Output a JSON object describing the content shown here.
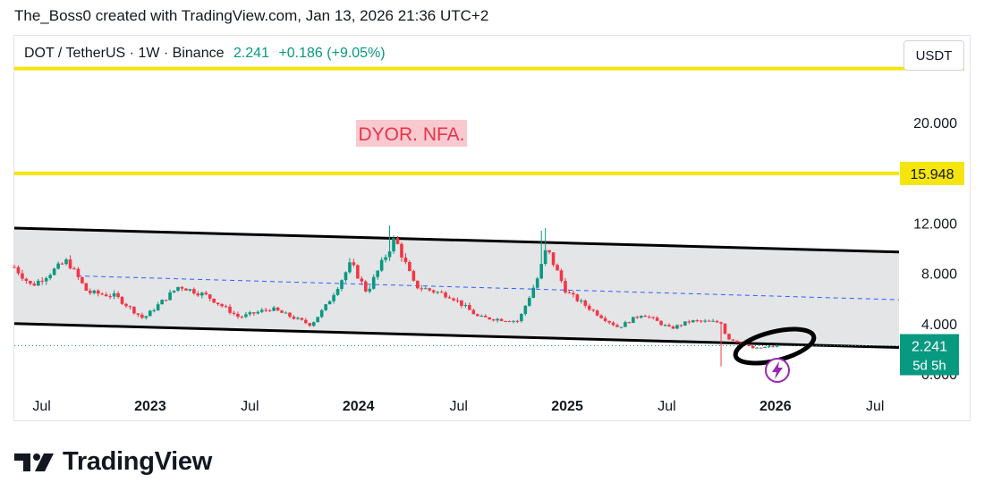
{
  "caption": "The_Boss0 created with TradingView.com, Jan 13, 2026 21:36 UTC+2",
  "legend": {
    "symbol": "DOT / TetherUS · 1W · Binance",
    "price": "2.241",
    "change": "+0.186 (+9.05%)"
  },
  "currency_button": "USDT",
  "annotation_text": "DYOR. NFA.",
  "level_label": "15.948",
  "last_price_label": "2.241",
  "countdown_label": "5d 5h",
  "brand": "TradingView",
  "colors": {
    "up": "#089981",
    "down": "#f23645",
    "level": "#f5e50e",
    "channel_fill": "#e3e4e6",
    "midline": "#2962ff",
    "annotation_bg": "#f9c9d0",
    "annotation_text": "#e8334a",
    "flash": "#9c27b0"
  },
  "icons": [
    "flash-icon",
    "tradingview-logo-icon"
  ],
  "chart_data": {
    "type": "candlestick",
    "interval": "1W",
    "y_axis": {
      "ticks": [
        0,
        4,
        8,
        12,
        20
      ],
      "tick_labels": [
        "0.000",
        "4.000",
        "8.000",
        "12.000",
        "20.000"
      ],
      "range": [
        -0.3,
        25.5
      ]
    },
    "x_axis": {
      "tick_labels": [
        "Jul",
        "2023",
        "Jul",
        "2024",
        "Jul",
        "2025",
        "Jul",
        "2026",
        "Jul"
      ],
      "tick_dates": [
        "2022-07-01",
        "2023-01-01",
        "2023-07-01",
        "2024-01-01",
        "2024-07-01",
        "2025-01-01",
        "2025-07-01",
        "2026-01-01",
        "2026-07-01"
      ],
      "range": [
        "2022-05-14",
        "2026-08-12"
      ]
    },
    "horizontal_levels": [
      {
        "value": 15.948,
        "labeled": true
      },
      {
        "value": 24.3,
        "labeled": false
      }
    ],
    "channel": {
      "upper": [
        [
          "2022-05-14",
          11.6
        ],
        [
          "2026-08-12",
          9.7
        ]
      ],
      "lower": [
        [
          "2022-05-14",
          4.0
        ],
        [
          "2026-08-12",
          2.1
        ]
      ],
      "mid": [
        [
          "2022-09-01",
          7.8
        ],
        [
          "2026-08-12",
          5.9
        ]
      ]
    },
    "current_price": 2.241,
    "key_points": [
      {
        "date": "2022-05-14",
        "price": 8.5
      },
      {
        "date": "2022-06-13",
        "price": 7.0
      },
      {
        "date": "2022-08-15",
        "price": 9.0
      },
      {
        "date": "2022-09-19",
        "price": 6.5
      },
      {
        "date": "2022-11-07",
        "price": 6.2
      },
      {
        "date": "2022-12-26",
        "price": 4.4
      },
      {
        "date": "2023-02-27",
        "price": 7.0
      },
      {
        "date": "2023-04-17",
        "price": 6.2
      },
      {
        "date": "2023-06-12",
        "price": 4.5
      },
      {
        "date": "2023-08-07",
        "price": 5.2
      },
      {
        "date": "2023-10-16",
        "price": 3.9
      },
      {
        "date": "2023-11-13",
        "price": 5.5
      },
      {
        "date": "2023-12-25",
        "price": 8.8
      },
      {
        "date": "2024-01-22",
        "price": 6.5
      },
      {
        "date": "2024-03-11",
        "price": 10.8
      },
      {
        "date": "2024-04-15",
        "price": 7.0
      },
      {
        "date": "2024-06-17",
        "price": 6.2
      },
      {
        "date": "2024-08-05",
        "price": 4.5
      },
      {
        "date": "2024-10-14",
        "price": 4.2
      },
      {
        "date": "2024-11-18",
        "price": 7.8
      },
      {
        "date": "2024-12-02",
        "price": 10.0
      },
      {
        "date": "2025-01-06",
        "price": 6.5
      },
      {
        "date": "2025-03-10",
        "price": 4.5
      },
      {
        "date": "2025-04-07",
        "price": 3.7
      },
      {
        "date": "2025-05-19",
        "price": 4.8
      },
      {
        "date": "2025-07-07",
        "price": 3.6
      },
      {
        "date": "2025-08-11",
        "price": 4.2
      },
      {
        "date": "2025-10-06",
        "price": 4.1
      },
      {
        "date": "2025-10-13",
        "price": 2.9
      },
      {
        "date": "2025-12-01",
        "price": 2.0
      },
      {
        "date": "2026-01-12",
        "price": 2.241
      }
    ]
  }
}
